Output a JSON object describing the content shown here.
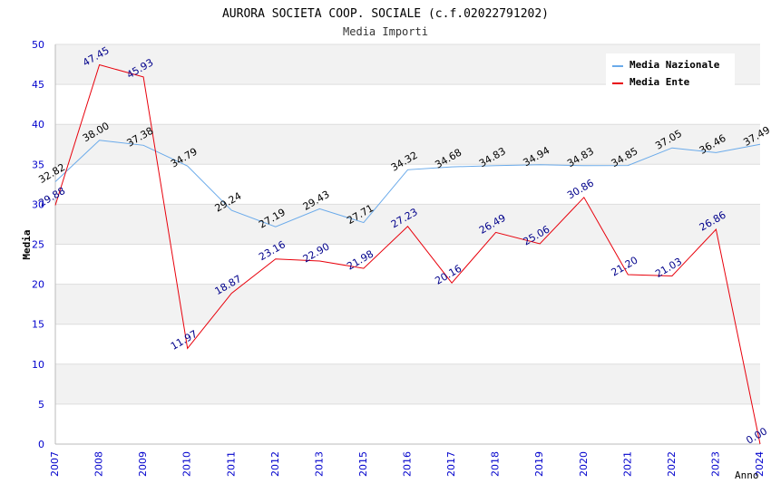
{
  "chart_data": {
    "type": "line",
    "title": "AURORA SOCIETA COOP. SOCIALE (c.f.02022791202)",
    "subtitle": "Media Importi",
    "xlabel": "Anno",
    "ylabel": "Media",
    "categories": [
      "2007",
      "2008",
      "2009",
      "2010",
      "2011",
      "2012",
      "2013",
      "2015",
      "2016",
      "2017",
      "2018",
      "2019",
      "2020",
      "2021",
      "2022",
      "2023",
      "2024"
    ],
    "ylim": [
      0,
      50
    ],
    "yticks": [
      0,
      5,
      10,
      15,
      20,
      25,
      30,
      35,
      40,
      45,
      50
    ],
    "grid": true,
    "legend_position": "top-right",
    "series": [
      {
        "name": "Media Nazionale",
        "color": "#6aaaea",
        "label_color": "#000000",
        "values": [
          32.82,
          38.0,
          37.38,
          34.79,
          29.24,
          27.19,
          29.43,
          27.71,
          34.32,
          34.68,
          34.83,
          34.94,
          34.83,
          34.85,
          37.05,
          36.46,
          37.49
        ],
        "labels": [
          "32.82",
          "38.00",
          "37.38",
          "34.79",
          "29.24",
          "27.19",
          "29.43",
          "27.71",
          "34.32",
          "34.68",
          "34.83",
          "34.94",
          "34.83",
          "34.85",
          "37.05",
          "36.46",
          "37.49"
        ]
      },
      {
        "name": "Media Ente",
        "color": "#e8000b",
        "label_color": "#00008b",
        "values": [
          29.88,
          47.45,
          45.93,
          11.97,
          18.87,
          23.16,
          22.9,
          21.98,
          27.23,
          20.16,
          26.49,
          25.06,
          30.86,
          21.2,
          21.03,
          26.86,
          0.0
        ],
        "labels": [
          "29.88",
          "47.45",
          "45.93",
          "11.97",
          "18.87",
          "23.16",
          "22.90",
          "21.98",
          "27.23",
          "20.16",
          "26.49",
          "25.06",
          "30.86",
          "21.20",
          "21.03",
          "26.86",
          "0.00"
        ]
      }
    ],
    "colors": {
      "axis_tick_labels": "#0000cc",
      "band": "#f2f2f2",
      "gridline": "#dddddd"
    }
  }
}
